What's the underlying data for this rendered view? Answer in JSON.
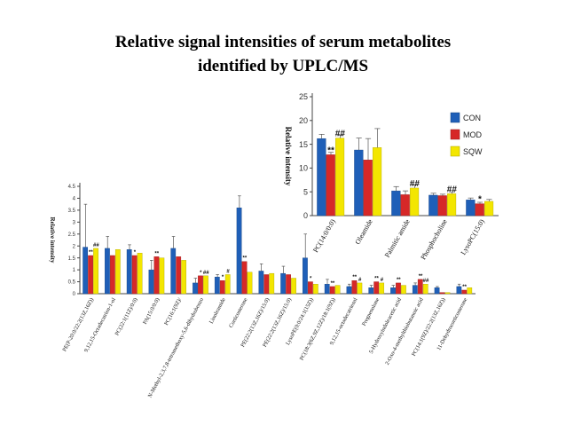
{
  "slide": {
    "title_line1": "Relative signal intensities of serum metabolites",
    "title_line2": "identified by UPLC/MS"
  },
  "colors": {
    "CON": "#1f5fb8",
    "MOD": "#d62828",
    "SQW": "#f3e600"
  },
  "chart_data": [
    {
      "type": "bar",
      "title": "",
      "ylabel": "Relative intensity",
      "xlabel": "",
      "ylim": [
        0,
        25
      ],
      "yticks": [
        "0",
        "5",
        "10",
        "15",
        "20",
        "25"
      ],
      "grid": false,
      "legend_position": "right",
      "legend": [
        "CON",
        "MOD",
        "SQW"
      ],
      "categories": [
        "PC(14:0/0:0)",
        "Oleamide",
        "Palmitic amide",
        "Phosphocholine",
        "LysoPC(15:0)"
      ],
      "series": [
        {
          "name": "CON",
          "values": [
            16.2,
            13.8,
            5.2,
            4.3,
            3.3
          ],
          "errors": [
            0.9,
            2.5,
            0.9,
            0.4,
            0.4
          ]
        },
        {
          "name": "MOD",
          "values": [
            12.8,
            11.7,
            4.4,
            4.2,
            2.5
          ],
          "errors": [
            0.5,
            4.5,
            0.8,
            0.3,
            0.3
          ]
        },
        {
          "name": "SQW",
          "values": [
            16.3,
            14.3,
            5.8,
            4.6,
            3.0
          ],
          "errors": [
            0.6,
            4.0,
            0.6,
            0.4,
            0.4
          ]
        }
      ],
      "annotations": [
        {
          "category": 0,
          "series": 1,
          "text": "**"
        },
        {
          "category": 0,
          "series": 2,
          "text": "##"
        },
        {
          "category": 2,
          "series": 2,
          "text": "##"
        },
        {
          "category": 3,
          "series": 2,
          "text": "##"
        },
        {
          "category": 4,
          "series": 1,
          "text": "*"
        }
      ]
    },
    {
      "type": "bar",
      "title": "",
      "ylabel": "Relative intensity",
      "xlabel": "",
      "ylim": [
        0,
        4.5
      ],
      "yticks": [
        "0",
        "0.5",
        "1",
        "1.5",
        "2",
        "2.5",
        "3",
        "3.5",
        "4",
        "4.5"
      ],
      "grid": false,
      "categories": [
        "PE(P-20:0/22:2(13Z,16Z))",
        "9,12,15-Octadecatrien-1-ol",
        "PC(22:1(11Z)/0:0)",
        "PA(15:0/0:0)",
        "PC(16:1(9Z)/",
        "N-Methyl-2,3,7,8-tetramethoxy-5,6-dihydrobenzo",
        "Linoleamide",
        "Corticosterone",
        "PE(22:2(13Z,16Z)/15:0)",
        "PE(22:2(13Z,16Z)/15:0)",
        "LysoPE(0:0/24:1(15Z))",
        "PC(18:3(6Z,9Z,12Z)/18:1(9Z))",
        "9,12,15-octadecatrienal",
        "Pregnenolone",
        "5-Hydroxyindoleacetic acid",
        "2-Oxo-4-methylthiobutanoic acid",
        "PC(14:1(9Z)/22:2(13Z,16Z))",
        "11-Dehydrocorticosterone"
      ],
      "series": [
        {
          "name": "CON",
          "values": [
            1.95,
            1.9,
            1.85,
            1.0,
            1.9,
            0.45,
            0.7,
            3.6,
            0.95,
            0.85,
            1.5,
            0.4,
            0.3,
            0.25,
            0.25,
            0.35,
            0.25,
            0.3
          ],
          "errors": [
            1.8,
            0.5,
            0.2,
            0.4,
            0.5,
            0.2,
            0.1,
            0.5,
            0.3,
            0.3,
            1.0,
            0.2,
            0.1,
            0.1,
            0.1,
            0.1,
            0.05,
            0.1
          ]
        },
        {
          "name": "MOD",
          "values": [
            1.6,
            1.6,
            1.6,
            1.55,
            1.55,
            0.75,
            0.55,
            1.35,
            0.8,
            0.8,
            0.5,
            0.3,
            0.55,
            0.5,
            0.45,
            0.6,
            0.05,
            0.15
          ]
        },
        {
          "name": "SQW",
          "values": [
            1.9,
            1.85,
            1.7,
            1.5,
            1.4,
            0.75,
            0.8,
            0.9,
            0.85,
            0.65,
            0.4,
            0.35,
            0.45,
            0.45,
            0.35,
            0.4,
            0.05,
            0.25
          ]
        }
      ],
      "annotations": [
        {
          "category": 0,
          "series": 1,
          "text": "**"
        },
        {
          "category": 0,
          "series": 2,
          "text": "##"
        },
        {
          "category": 2,
          "series": 1,
          "text": "*"
        },
        {
          "category": 3,
          "series": 1,
          "text": "**"
        },
        {
          "category": 5,
          "series": 1,
          "text": "*"
        },
        {
          "category": 5,
          "series": 2,
          "text": "##"
        },
        {
          "category": 6,
          "series": 1,
          "text": "*"
        },
        {
          "category": 6,
          "series": 2,
          "text": "#"
        },
        {
          "category": 7,
          "series": 1,
          "text": "**"
        },
        {
          "category": 10,
          "series": 1,
          "text": "*"
        },
        {
          "category": 11,
          "series": 1,
          "text": "**"
        },
        {
          "category": 12,
          "series": 1,
          "text": "**"
        },
        {
          "category": 12,
          "series": 2,
          "text": "#"
        },
        {
          "category": 13,
          "series": 1,
          "text": "**"
        },
        {
          "category": 13,
          "series": 2,
          "text": "#"
        },
        {
          "category": 14,
          "series": 1,
          "text": "**"
        },
        {
          "category": 15,
          "series": 1,
          "text": "**"
        },
        {
          "category": 15,
          "series": 2,
          "text": "##"
        },
        {
          "category": 17,
          "series": 1,
          "text": "**"
        }
      ]
    }
  ]
}
